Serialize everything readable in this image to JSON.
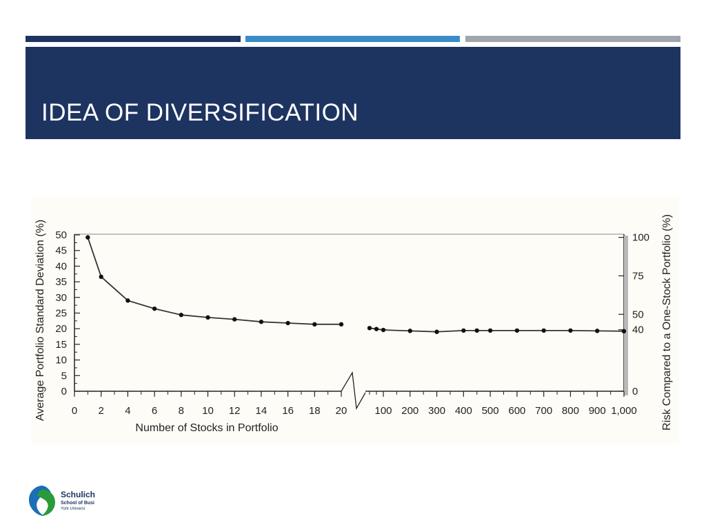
{
  "slide": {
    "title": "IDEA OF DIVERSIFICATION",
    "accent_colors": [
      "#1d3461",
      "#3a8cc6",
      "#a0a6ad"
    ]
  },
  "logo": {
    "name": "Schulich",
    "subtitle": "School of Busi",
    "university": "York Universi"
  },
  "chart_data": {
    "type": "line",
    "title": "",
    "xlabel": "Number of Stocks in Portfolio",
    "ylabel": "Average Portfolio Standard Deviation (%)",
    "ylabel_right": "Risk Compared to a One-Stock Portfolio (%)",
    "ylim": [
      0,
      50
    ],
    "grid": false,
    "axis_break": "between 20 and 100",
    "y_ticks": [
      "0",
      "5",
      "10",
      "15",
      "20",
      "25",
      "30",
      "35",
      "40",
      "45",
      "50"
    ],
    "y_ticks_right": [
      "0",
      "40",
      "50",
      "75",
      "100"
    ],
    "x_ticks_left": [
      "0",
      "2",
      "4",
      "6",
      "8",
      "10",
      "12",
      "14",
      "16",
      "18",
      "20"
    ],
    "x_ticks_right": [
      "100",
      "200",
      "300",
      "400",
      "500",
      "600",
      "700",
      "800",
      "900",
      "1,000"
    ],
    "series": [
      {
        "x": [
          1,
          2,
          4,
          6,
          8,
          10,
          12,
          14,
          16,
          18,
          20
        ],
        "values": [
          49.2,
          36.6,
          29.0,
          26.4,
          24.4,
          23.6,
          23.0,
          22.2,
          21.8,
          21.4,
          21.4
        ]
      },
      {
        "x": [
          50,
          75,
          100,
          200,
          300,
          400,
          450,
          500,
          600,
          700,
          800,
          900,
          1000
        ],
        "values": [
          20.2,
          19.9,
          19.6,
          19.3,
          19.0,
          19.4,
          19.4,
          19.4,
          19.4,
          19.4,
          19.4,
          19.3,
          19.2
        ]
      }
    ]
  }
}
